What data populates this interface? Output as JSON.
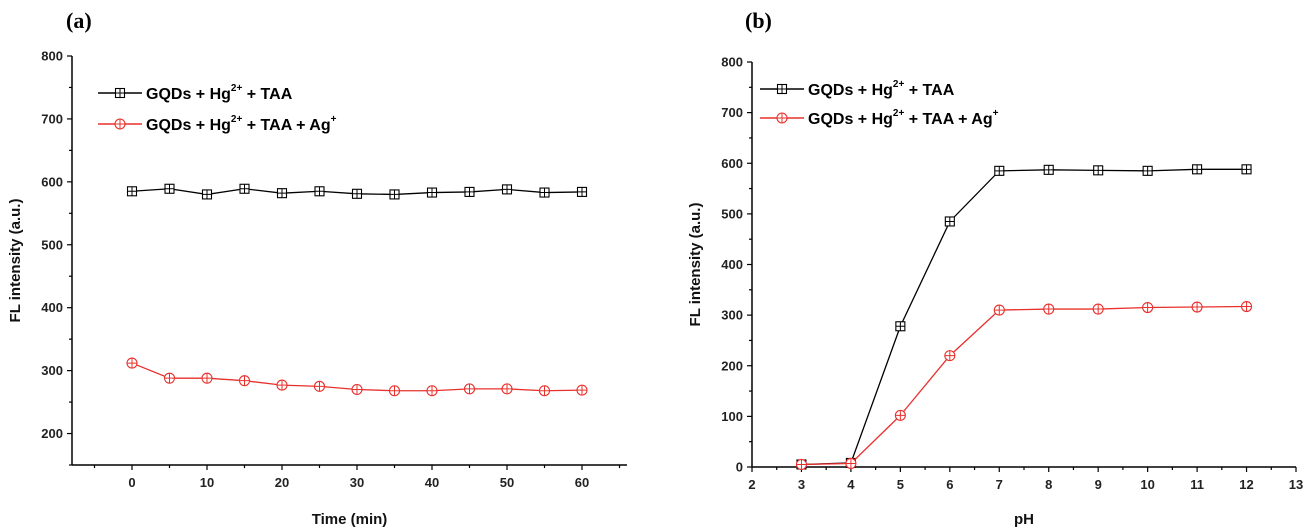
{
  "chart_data": [
    {
      "type": "line",
      "panel_label": "(a)",
      "xlabel": "Time (min)",
      "ylabel": "FL intensity (a.u.)",
      "xlim": [
        -8,
        66
      ],
      "ylim": [
        150,
        800
      ],
      "xticks": [
        0,
        10,
        20,
        30,
        40,
        50,
        60
      ],
      "yticks": [
        200,
        300,
        400,
        500,
        600,
        700,
        800
      ],
      "legend_position": "top-left",
      "legend": [
        {
          "base": "GQDs + Hg",
          "sup": "2+",
          "rest": " + TAA",
          "rest_sup": ""
        },
        {
          "base": "GQDs + Hg",
          "sup": "2+",
          "rest": " + TAA + Ag",
          "rest_sup": "+"
        }
      ],
      "x": [
        0,
        5,
        10,
        15,
        20,
        25,
        30,
        35,
        40,
        45,
        50,
        55,
        60
      ],
      "series": [
        {
          "color": "#000000",
          "marker": "square-cross",
          "values": [
            585,
            589,
            580,
            589,
            582,
            585,
            581,
            580,
            583,
            584,
            588,
            583,
            584
          ]
        },
        {
          "color": "#e8302c",
          "marker": "circle-cross",
          "values": [
            312,
            288,
            288,
            284,
            277,
            275,
            270,
            268,
            268,
            271,
            271,
            268,
            269
          ]
        }
      ]
    },
    {
      "type": "line",
      "panel_label": "(b)",
      "xlabel": "pH",
      "ylabel": "FL intensity (a.u.)",
      "xlim": [
        2,
        13
      ],
      "ylim": [
        0,
        800
      ],
      "xticks": [
        2,
        3,
        4,
        5,
        6,
        7,
        8,
        9,
        10,
        11,
        12,
        13
      ],
      "yticks": [
        0,
        100,
        200,
        300,
        400,
        500,
        600,
        700,
        800
      ],
      "legend_position": "top-left",
      "legend": [
        {
          "base": "GQDs + Hg",
          "sup": "2+",
          "rest": " + TAA",
          "rest_sup": ""
        },
        {
          "base": "GQDs + Hg",
          "sup": "2+",
          "rest": " + TAA + Ag",
          "rest_sup": "+"
        }
      ],
      "x": [
        3,
        4,
        5,
        6,
        7,
        8,
        9,
        10,
        11,
        12
      ],
      "series": [
        {
          "color": "#000000",
          "marker": "square-cross",
          "values": [
            5,
            8,
            278,
            485,
            585,
            587,
            586,
            585,
            588,
            588
          ]
        },
        {
          "color": "#e8302c",
          "marker": "circle-cross",
          "values": [
            5,
            7,
            102,
            220,
            310,
            312,
            312,
            315,
            316,
            317
          ]
        }
      ]
    }
  ]
}
